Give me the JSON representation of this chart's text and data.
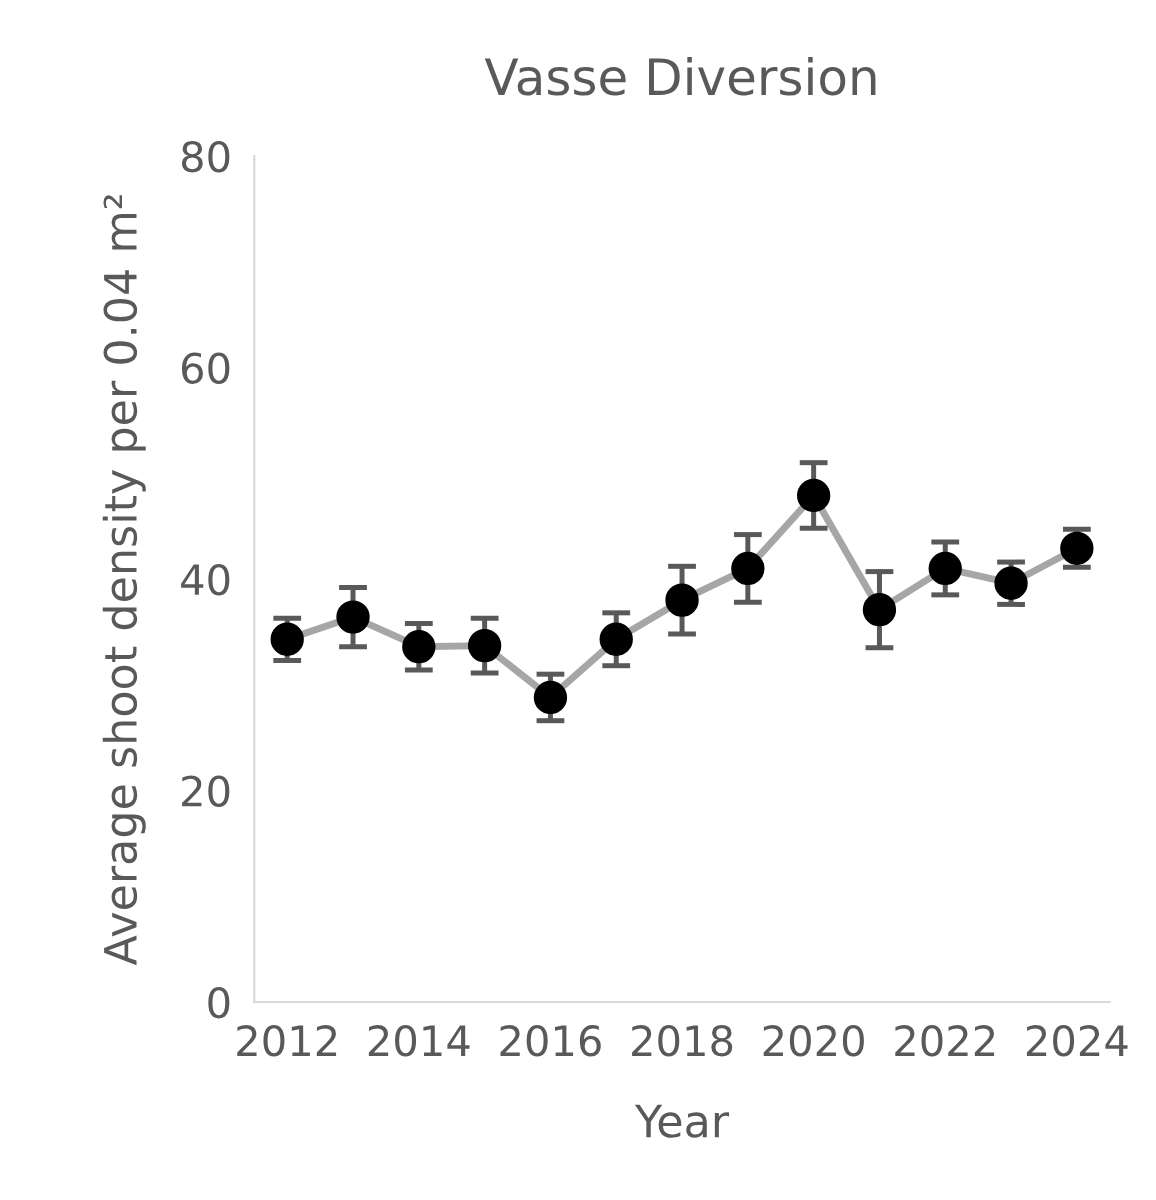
{
  "chart_data": {
    "type": "line",
    "title": "Vasse Diversion",
    "xlabel": "Year",
    "ylabel": "Average shoot density per 0.04 m²",
    "categories": [
      "2012",
      null,
      "2014",
      null,
      "2016",
      null,
      "2018",
      null,
      "2020",
      null,
      "2022",
      null,
      "2024"
    ],
    "series": [
      {
        "color": "#000000",
        "values": [
          34.3,
          36.4,
          33.6,
          33.7,
          28.8,
          34.3,
          38.0,
          41.0,
          47.9,
          37.1,
          41.0,
          39.6,
          42.9
        ],
        "errors": [
          2.0,
          2.8,
          2.2,
          2.6,
          2.2,
          2.5,
          3.2,
          3.2,
          3.1,
          3.6,
          2.5,
          2.0,
          1.8
        ]
      }
    ],
    "ylim": [
      0,
      80
    ],
    "yticks": [
      0,
      20,
      40,
      60,
      80
    ],
    "grid": false,
    "legend": false,
    "marker": "circle",
    "line_style": "solid"
  }
}
